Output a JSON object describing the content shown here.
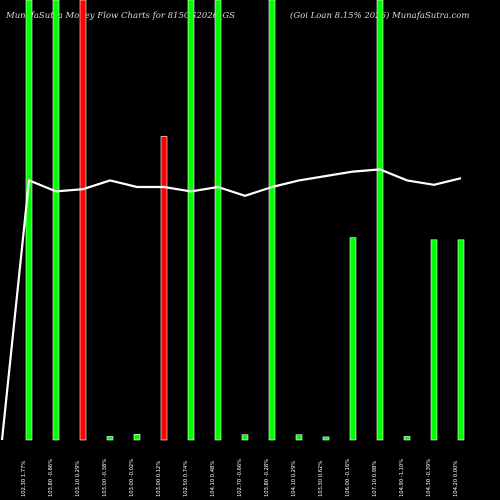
{
  "chart_data": {
    "type": "bar",
    "title_left": "MunafaSutra  Money Flow  Charts for 815GS2026_GS",
    "title_right": "(Goi  Loan  8.15% 2026) MunafaSutra.com",
    "colors": {
      "background": "#000000",
      "up": "#00ff00",
      "down": "#ff0000",
      "bar_outline": "#ffffff",
      "line": "#ffffff"
    },
    "y_range": [
      0,
      100
    ],
    "line_range": [
      0,
      100
    ],
    "categories": [
      "102.30 1.77%",
      "103.80 -0.86%",
      "103.10 0.29%",
      "103.00 -0.38%",
      "103.00 -0.02%",
      "103.00 0.12%",
      "102.50 0.74%",
      "104.10 0.48%",
      "102.70 -0.66%",
      "103.80 -0.28%",
      "104.10 0.29%",
      "103.30 0.62%",
      "106.00 -0.16%",
      "107.10 0.98%",
      "104.90 -1.10%",
      "104.30 -0.39%",
      "104.20 0.00%"
    ],
    "series": [
      {
        "values": [
          100,
          100,
          100,
          0.8,
          1.3,
          69,
          100,
          100,
          1.2,
          100,
          1.2,
          0.7,
          46,
          100,
          0.8,
          45.5,
          45.5
        ],
        "direction": [
          "up",
          "up",
          "down",
          "up",
          "up",
          "down",
          "up",
          "up",
          "up",
          "up",
          "up",
          "up",
          "up",
          "up",
          "up",
          "up",
          "up"
        ]
      }
    ],
    "line_values": [
      59,
      56.5,
      57,
      59,
      57.5,
      57.5,
      56.5,
      57.5,
      55.5,
      57.5,
      59,
      60,
      61,
      61.5,
      59,
      58,
      59.5
    ]
  }
}
